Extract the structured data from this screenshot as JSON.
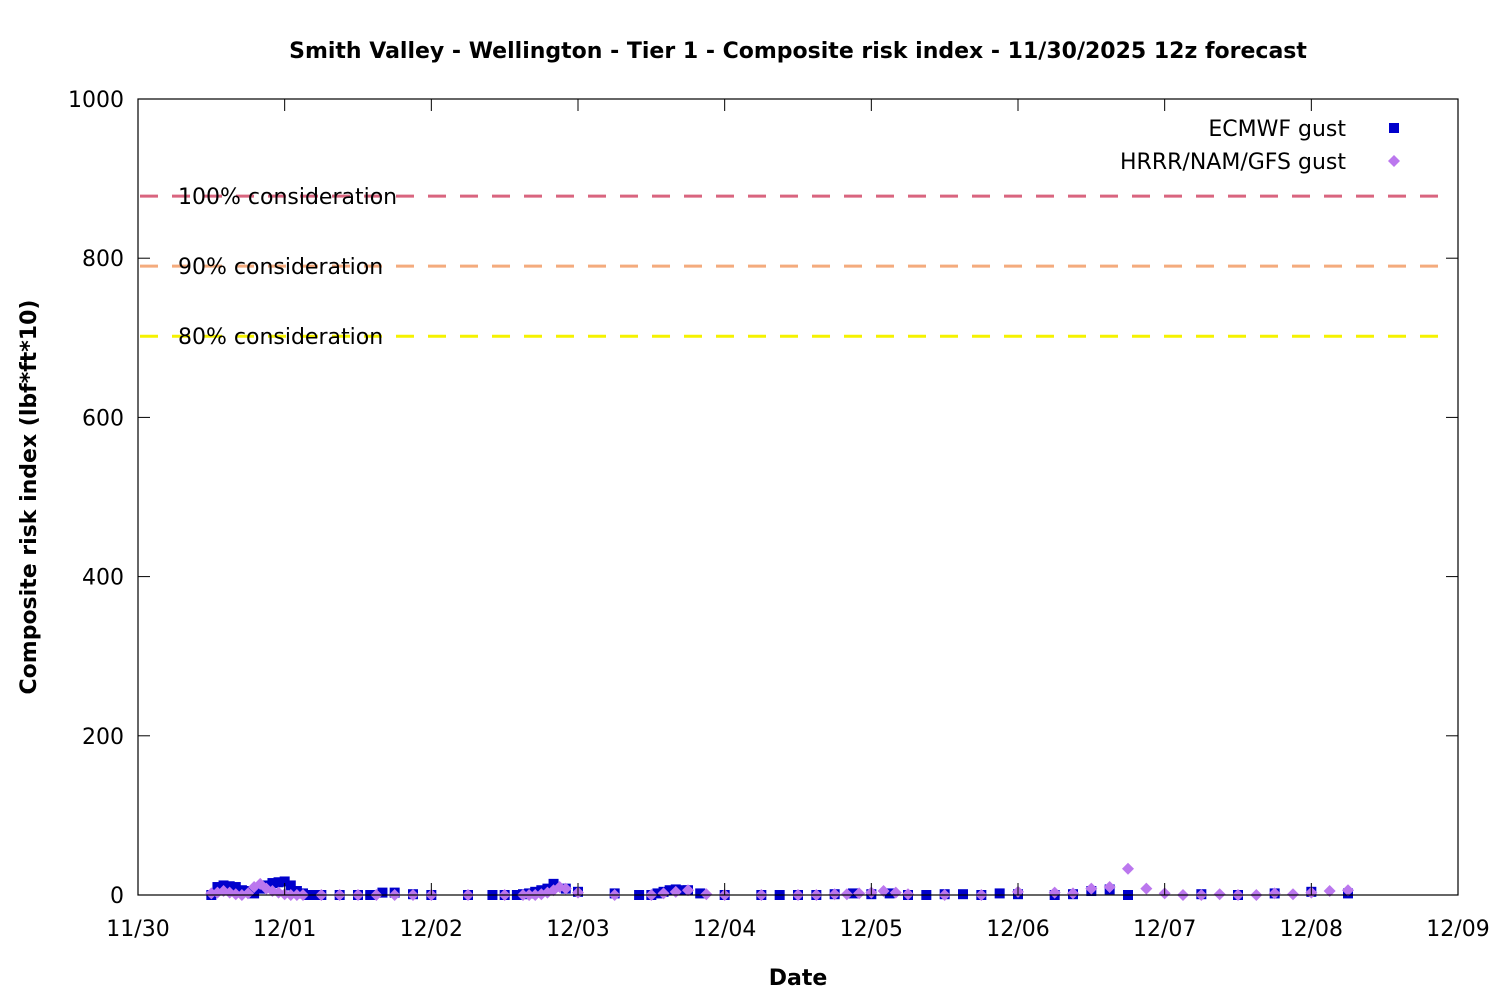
{
  "chart_data": {
    "type": "scatter",
    "title": "Smith Valley - Wellington - Tier 1 - Composite risk index - 11/30/2025 12z forecast",
    "xlabel": "Date",
    "ylabel": "Composite risk index (lbf*ft*10)",
    "x_is_date": true,
    "xlim": [
      "2025-11-30",
      "2025-12-09"
    ],
    "ylim": [
      0,
      1000
    ],
    "x_ticks": [
      "11/30",
      "12/01",
      "12/02",
      "12/03",
      "12/04",
      "12/05",
      "12/06",
      "12/07",
      "12/08",
      "12/09"
    ],
    "x_tick_dates": [
      "2025-11-30",
      "2025-12-01",
      "2025-12-02",
      "2025-12-03",
      "2025-12-04",
      "2025-12-05",
      "2025-12-06",
      "2025-12-07",
      "2025-12-08",
      "2025-12-09"
    ],
    "y_ticks": [
      "0",
      "200",
      "400",
      "600",
      "800",
      "1000"
    ],
    "y_tick_values": [
      0,
      200,
      400,
      600,
      800,
      1000
    ],
    "grid": false,
    "legend_position": "top-right",
    "thresholds": [
      {
        "label": "100% consideration",
        "value": 878,
        "color": "#d9657f"
      },
      {
        "label": "90% consideration",
        "value": 790,
        "color": "#f4ab7d"
      },
      {
        "label": "80% consideration",
        "value": 702,
        "color": "#f5f200"
      }
    ],
    "series": [
      {
        "name": "ECMWF gust",
        "color": "#0000cc",
        "marker": "square",
        "x": [
          "2025-11-30 12:00",
          "2025-11-30 13:00",
          "2025-11-30 14:00",
          "2025-11-30 15:00",
          "2025-11-30 16:00",
          "2025-11-30 17:00",
          "2025-11-30 18:00",
          "2025-11-30 19:00",
          "2025-11-30 20:00",
          "2025-11-30 21:00",
          "2025-11-30 22:00",
          "2025-11-30 23:00",
          "2025-12-01 00:00",
          "2025-12-01 01:00",
          "2025-12-01 02:00",
          "2025-12-01 03:00",
          "2025-12-01 04:00",
          "2025-12-01 05:00",
          "2025-12-01 06:00",
          "2025-12-01 09:00",
          "2025-12-01 12:00",
          "2025-12-01 14:00",
          "2025-12-01 16:00",
          "2025-12-01 18:00",
          "2025-12-01 21:00",
          "2025-12-02 00:00",
          "2025-12-02 06:00",
          "2025-12-02 10:00",
          "2025-12-02 12:00",
          "2025-12-02 14:00",
          "2025-12-02 15:00",
          "2025-12-02 16:00",
          "2025-12-02 17:00",
          "2025-12-02 18:00",
          "2025-12-02 19:00",
          "2025-12-02 20:00",
          "2025-12-02 22:00",
          "2025-12-03 00:00",
          "2025-12-03 06:00",
          "2025-12-03 10:00",
          "2025-12-03 12:00",
          "2025-12-03 13:00",
          "2025-12-03 14:00",
          "2025-12-03 15:00",
          "2025-12-03 16:00",
          "2025-12-03 17:00",
          "2025-12-03 18:00",
          "2025-12-03 20:00",
          "2025-12-04 00:00",
          "2025-12-04 06:00",
          "2025-12-04 09:00",
          "2025-12-04 12:00",
          "2025-12-04 15:00",
          "2025-12-04 18:00",
          "2025-12-04 21:00",
          "2025-12-05 00:00",
          "2025-12-05 03:00",
          "2025-12-05 06:00",
          "2025-12-05 09:00",
          "2025-12-05 12:00",
          "2025-12-05 15:00",
          "2025-12-05 18:00",
          "2025-12-05 21:00",
          "2025-12-06 00:00",
          "2025-12-06 06:00",
          "2025-12-06 09:00",
          "2025-12-06 12:00",
          "2025-12-06 15:00",
          "2025-12-06 18:00",
          "2025-12-07 06:00",
          "2025-12-07 12:00",
          "2025-12-07 18:00",
          "2025-12-08 00:00",
          "2025-12-08 06:00"
        ],
        "y": [
          0,
          10,
          12,
          11,
          10,
          6,
          5,
          2,
          8,
          12,
          15,
          16,
          17,
          12,
          5,
          2,
          0,
          0,
          0,
          0,
          0,
          0,
          3,
          3,
          1,
          0,
          0,
          0,
          0,
          0,
          1,
          2,
          4,
          6,
          8,
          14,
          8,
          4,
          2,
          0,
          0,
          2,
          4,
          6,
          7,
          6,
          6,
          2,
          0,
          0,
          0,
          0,
          0,
          1,
          2,
          1,
          2,
          0,
          0,
          1,
          1,
          0,
          2,
          1,
          0,
          1,
          5,
          7,
          0,
          1,
          0,
          2,
          4,
          2
        ]
      },
      {
        "name": "HRRR/NAM/GFS gust",
        "color": "#bb77ee",
        "marker": "diamond",
        "x": [
          "2025-11-30 12:00",
          "2025-11-30 13:00",
          "2025-11-30 14:00",
          "2025-11-30 15:00",
          "2025-11-30 16:00",
          "2025-11-30 17:00",
          "2025-11-30 18:00",
          "2025-11-30 19:00",
          "2025-11-30 20:00",
          "2025-11-30 21:00",
          "2025-11-30 22:00",
          "2025-11-30 23:00",
          "2025-12-01 00:00",
          "2025-12-01 01:00",
          "2025-12-01 02:00",
          "2025-12-01 03:00",
          "2025-12-01 06:00",
          "2025-12-01 09:00",
          "2025-12-01 12:00",
          "2025-12-01 15:00",
          "2025-12-01 18:00",
          "2025-12-01 21:00",
          "2025-12-02 00:00",
          "2025-12-02 06:00",
          "2025-12-02 12:00",
          "2025-12-02 15:00",
          "2025-12-02 16:00",
          "2025-12-02 17:00",
          "2025-12-02 18:00",
          "2025-12-02 19:00",
          "2025-12-02 20:00",
          "2025-12-02 21:00",
          "2025-12-02 22:00",
          "2025-12-03 00:00",
          "2025-12-03 06:00",
          "2025-12-03 12:00",
          "2025-12-03 14:00",
          "2025-12-03 16:00",
          "2025-12-03 18:00",
          "2025-12-03 21:00",
          "2025-12-04 00:00",
          "2025-12-04 06:00",
          "2025-12-04 12:00",
          "2025-12-04 15:00",
          "2025-12-04 18:00",
          "2025-12-04 20:00",
          "2025-12-04 22:00",
          "2025-12-05 00:00",
          "2025-12-05 02:00",
          "2025-12-05 04:00",
          "2025-12-05 06:00",
          "2025-12-05 12:00",
          "2025-12-05 18:00",
          "2025-12-06 00:00",
          "2025-12-06 06:00",
          "2025-12-06 09:00",
          "2025-12-06 12:00",
          "2025-12-06 15:00",
          "2025-12-06 18:00",
          "2025-12-06 21:00",
          "2025-12-07 00:00",
          "2025-12-07 03:00",
          "2025-12-07 06:00",
          "2025-12-07 09:00",
          "2025-12-07 12:00",
          "2025-12-07 15:00",
          "2025-12-07 18:00",
          "2025-12-07 21:00",
          "2025-12-08 00:00",
          "2025-12-08 03:00",
          "2025-12-08 06:00"
        ],
        "y": [
          2,
          3,
          5,
          3,
          1,
          0,
          2,
          10,
          14,
          8,
          5,
          3,
          1,
          0,
          0,
          0,
          0,
          0,
          0,
          0,
          0,
          0,
          0,
          0,
          0,
          0,
          0,
          0,
          1,
          3,
          6,
          10,
          8,
          3,
          0,
          0,
          2,
          4,
          6,
          1,
          0,
          0,
          0,
          0,
          1,
          1,
          2,
          3,
          5,
          3,
          1,
          0,
          0,
          4,
          3,
          2,
          8,
          10,
          33,
          8,
          2,
          0,
          0,
          1,
          0,
          0,
          2,
          1,
          3,
          5,
          6
        ]
      }
    ]
  }
}
